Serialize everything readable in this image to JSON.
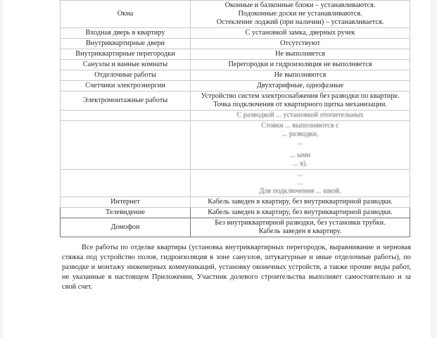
{
  "table": {
    "rows": [
      {
        "label": "Окна",
        "value": [
          "Оконные и балконные блоки – устанавливаются.",
          "Подоконные доски не устанавливаются.",
          "Остекление лоджий (при наличии) – устанавливается."
        ]
      },
      {
        "label": "Входная дверь в квартиру",
        "value": [
          "С установкой замка, дверных ручек"
        ]
      },
      {
        "label": "Внутриквартирные двери",
        "value": [
          "Отсутствуют"
        ]
      },
      {
        "label": "Внутриквартирные перегородки",
        "value": [
          "Не выполняется"
        ]
      },
      {
        "label": "Санузлы и ванные комнаты",
        "value": [
          "Перегородки и гидроизоляция не выполняется"
        ]
      },
      {
        "label": "Отделочные работы",
        "value": [
          "Не выполняются"
        ]
      },
      {
        "label": "Счетчики электроэнергии",
        "value": [
          "Двухтарифные, однофазные"
        ]
      },
      {
        "label": "Электромонтажные работы",
        "value": [
          "Устройство систем электроснабжения без разводки по квартире.",
          "Точка подключения от квартирного щитка механизации."
        ]
      },
      {
        "label": "",
        "value": [
          "С разводкой ... установкой отопительных"
        ]
      },
      {
        "label": "",
        "value": [
          "Стояки ... выполняются с",
          "... разводки,",
          "...",
          "",
          "... ыми",
          "... я)."
        ]
      },
      {
        "label": "",
        "value": [
          "...",
          "...",
          "Для подключения ... шкой."
        ]
      },
      {
        "label": "Интернет",
        "value": [
          "Кабель заведен в квартиру, без внутриквартирной разводки."
        ]
      },
      {
        "label": "Телевидение",
        "value": [
          "Кабель заведен в квартиру, без внутриквартирной разводки."
        ]
      },
      {
        "label": "Домофон",
        "value": [
          "Без внутриквартирной разводки, без установки трубки.",
          "Кабель заведен в квартиру."
        ]
      }
    ]
  },
  "paragraph": "Все работы по отделке квартиры (установка внутриквартирных перегородок, выравнивание и черновая стяжка под устройство полов, гидроизоляция в зоне санузлов, штукатурные и иные отделочные работы), по разводке и монтажу инженерных коммуникаций, установку оконечных устройств, а также прочие виды работ, не указанные в настоящем Приложении, Участник долевого строительства выполняет самостоятельно и за свой счет."
}
